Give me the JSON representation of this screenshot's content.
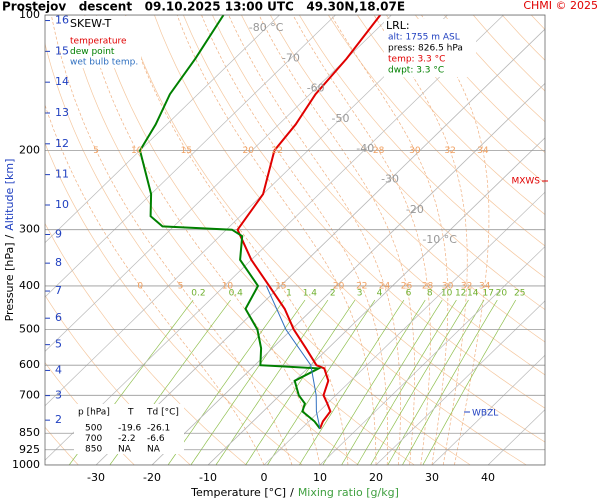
{
  "chart_data": {
    "type": "skewt",
    "title": "Prostejov   descent   09.10.2025 13:00 UTC   49.30N,18.07E",
    "credit": "CHMI © 2025",
    "legend_title": "SKEW-T",
    "series": [
      {
        "name": "temperature",
        "color": "#e00000",
        "pressure": [
          830,
          800,
          760,
          730,
          700,
          650,
          610,
          600,
          550,
          500,
          450,
          400,
          350,
          300,
          250,
          200,
          175,
          150,
          125,
          100
        ],
        "values": [
          3.3,
          2.5,
          2,
          0,
          -2.2,
          -4,
          -7,
          -9,
          -14,
          -19.6,
          -25,
          -32,
          -40,
          -48,
          -50,
          -56,
          -57,
          -59,
          -60,
          -62
        ]
      },
      {
        "name": "dew point",
        "color": "#008000",
        "pressure": [
          830,
          800,
          760,
          730,
          700,
          650,
          610,
          600,
          550,
          500,
          450,
          400,
          350,
          310,
          300,
          295,
          280,
          250,
          200,
          175,
          150,
          125,
          100
        ],
        "values": [
          3.3,
          1,
          -3,
          -4,
          -6.6,
          -10,
          -8,
          -19,
          -22,
          -26.1,
          -32,
          -34,
          -42,
          -46,
          -49,
          -62,
          -66,
          -70,
          -80,
          -82,
          -85,
          -87,
          -90
        ]
      },
      {
        "name": "wet bulb temp.",
        "color": "#3070c0",
        "pressure": [
          830,
          760,
          700,
          600,
          500,
          400
        ],
        "values": [
          3.3,
          -0.5,
          -3.5,
          -10,
          -21,
          -32.5
        ]
      }
    ],
    "ylim": [
      1000,
      100
    ],
    "yticks": [
      100,
      200,
      300,
      400,
      500,
      600,
      700,
      850,
      925,
      1000
    ],
    "log_y": true,
    "xticks": [
      -30,
      -20,
      -10,
      0,
      10,
      20,
      30,
      40
    ],
    "altitude_ticks": [
      2,
      3,
      4,
      5,
      6,
      7,
      8,
      9,
      10,
      11,
      12,
      13,
      14,
      15,
      16
    ],
    "isotherm_labels": [
      {
        "value": -80,
        "label": "-80 °C"
      },
      {
        "value": -70,
        "label": "-70"
      },
      {
        "value": -60,
        "label": "-60"
      },
      {
        "value": -50,
        "label": "-50"
      },
      {
        "value": -40,
        "label": "-40"
      },
      {
        "value": -30,
        "label": "-30"
      },
      {
        "value": -20,
        "label": "-20"
      },
      {
        "value": -10,
        "label": "-10 °C"
      }
    ],
    "mixing_ratio_labels": [
      0.2,
      0.4,
      1,
      1.4,
      2,
      3,
      4,
      6,
      8,
      10,
      12,
      14,
      17,
      20,
      25
    ],
    "adiabat_labels_200": [
      5,
      10,
      15,
      20,
      22,
      28,
      30,
      32,
      34
    ],
    "adiabat_labels_400": [
      0,
      5,
      10,
      15,
      20,
      22,
      24,
      26,
      28,
      30,
      32,
      34
    ],
    "ylabel": [
      "Pressure [hPa]",
      "/",
      "Altitude [km]"
    ],
    "xlabel": [
      "Temperature [°C]",
      "/",
      "Mixing ratio [g/kg]"
    ],
    "lrl": [
      "LRL:",
      "alt: 1755 m ASL",
      "press: 826.5 hPa",
      "temp: 3.3 °C",
      "dwpt: 3.3 °C"
    ],
    "markers": [
      "MXWS",
      "WBZL"
    ],
    "table": {
      "columns": [
        "p [hPa]",
        "T",
        "Td [°C]"
      ],
      "rows": [
        [
          500,
          -19.6,
          -26.1
        ],
        [
          700,
          -2.2,
          -6.6
        ],
        [
          850,
          "NA",
          "NA"
        ]
      ]
    }
  }
}
